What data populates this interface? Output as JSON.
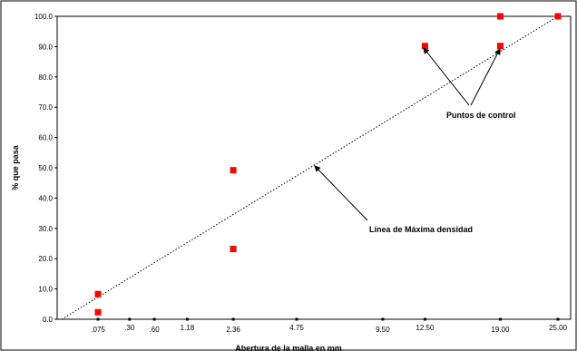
{
  "chart_data": {
    "type": "scatter",
    "xlabel": "Abertura de la malla en mm",
    "ylabel": "% que pasa",
    "ylim": [
      0,
      100
    ],
    "y_ticks": [
      "0.0",
      "10.0",
      "20.0",
      "30.0",
      "40.0",
      "50.0",
      "60.0",
      "70.0",
      "80.0",
      "90.0",
      "100.0"
    ],
    "x_scale": "power 0.45 (gradation chart)",
    "x_ticks": [
      ".075",
      ".30",
      ".60",
      "1.18",
      "2.36",
      "4.75",
      "9.50",
      "12.50",
      "19.00",
      "25.00"
    ],
    "xlim": [
      0,
      25
    ],
    "grid": false,
    "legend": "none",
    "series": [
      {
        "name": "Puntos de control",
        "color": "#ff0000",
        "marker": "square",
        "points": [
          {
            "x": 0.075,
            "y": 8.3
          },
          {
            "x": 0.075,
            "y": 2.3
          },
          {
            "x": 2.36,
            "y": 49.2
          },
          {
            "x": 2.36,
            "y": 23.2
          },
          {
            "x": 12.5,
            "y": 90.2
          },
          {
            "x": 19.0,
            "y": 90.2
          },
          {
            "x": 19.0,
            "y": 100
          },
          {
            "x": 25.0,
            "y": 100
          }
        ]
      },
      {
        "name": "Línea de Máxima densidad",
        "color": "#000000",
        "style": "dotted",
        "points": [
          {
            "x": 0,
            "y": 0
          },
          {
            "x": 25.0,
            "y": 100
          }
        ]
      }
    ],
    "annotations": [
      {
        "text": "Línea de Máxima densidad"
      },
      {
        "text": "Puntos de control"
      }
    ]
  }
}
